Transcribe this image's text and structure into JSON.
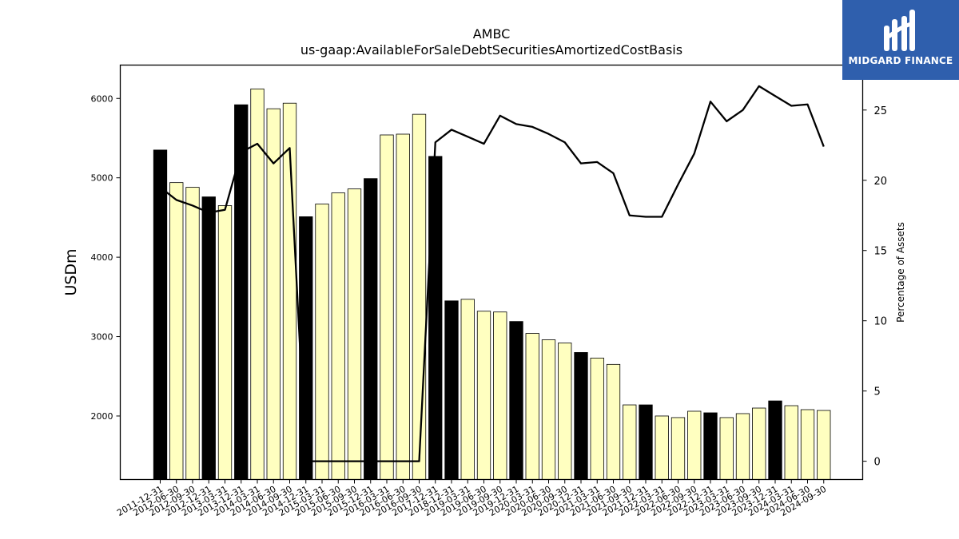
{
  "logo": {
    "text": "MIDGARD FINANCE",
    "background": "#2f5fad"
  },
  "chart_data": {
    "type": "bar",
    "title": "AMBC",
    "subtitle": "us-gaap:AvailableForSaleDebtSecuritiesAmortizedCostBasis",
    "ylabel": "USDm",
    "y2label": "Percentage of Assets",
    "ylim": [
      1200,
      6420
    ],
    "y2lim": [
      -1.3,
      28.2
    ],
    "yticks": [
      2000,
      3000,
      4000,
      5000,
      6000
    ],
    "y2ticks": [
      0,
      5,
      10,
      15,
      20,
      25
    ],
    "grid": false,
    "colors": {
      "annual": "#000000",
      "quarterly": "#ffffc0",
      "edge": "#000000",
      "line": "#000000"
    },
    "categories": [
      "2011-12-31",
      "2012-06-30",
      "2012-09-30",
      "2012-12-31",
      "2013-03-31",
      "2013-12-31",
      "2014-03-31",
      "2014-06-30",
      "2014-09-30",
      "2014-12-31",
      "2015-03-31",
      "2015-06-30",
      "2015-09-30",
      "2015-12-31",
      "2016-03-31",
      "2016-06-30",
      "2016-09-30",
      "2017-12-31",
      "2018-12-31",
      "2019-03-31",
      "2019-06-30",
      "2019-09-30",
      "2019-12-31",
      "2020-03-31",
      "2020-06-30",
      "2020-09-30",
      "2020-12-31",
      "2021-03-31",
      "2021-06-30",
      "2021-09-30",
      "2021-12-31",
      "2022-03-31",
      "2022-06-30",
      "2022-09-30",
      "2022-12-31",
      "2023-03-31",
      "2023-06-30",
      "2023-09-30",
      "2023-12-31",
      "2024-03-31",
      "2024-06-30",
      "2024-09-30"
    ],
    "series": [
      {
        "kind": "bar",
        "values": [
          5350,
          4940,
          4880,
          4760,
          4650,
          5920,
          6120,
          5870,
          5940,
          4510,
          4670,
          4810,
          4860,
          4990,
          5540,
          5550,
          5800,
          5270,
          3450,
          3470,
          3320,
          3310,
          3190,
          3040,
          2960,
          2920,
          2800,
          2730,
          2650,
          2140,
          2140,
          2000,
          1980,
          2060,
          2040,
          1980,
          2030,
          2100,
          2190,
          2130,
          2080,
          2070
        ],
        "annual": [
          true,
          false,
          false,
          true,
          false,
          true,
          false,
          false,
          false,
          true,
          false,
          false,
          false,
          true,
          false,
          false,
          false,
          true,
          true,
          false,
          false,
          false,
          true,
          false,
          false,
          false,
          true,
          false,
          false,
          false,
          true,
          false,
          false,
          false,
          true,
          false,
          false,
          false,
          true,
          false,
          false,
          false
        ]
      },
      {
        "kind": "line",
        "axis": "right",
        "values": [
          19.5,
          18.6,
          18.2,
          17.7,
          17.9,
          22.0,
          22.6,
          21.2,
          22.3,
          0.0,
          0.0,
          0.0,
          0.0,
          0.0,
          0.0,
          0.0,
          0.0,
          22.7,
          23.6,
          23.1,
          22.6,
          24.6,
          24.0,
          23.8,
          23.3,
          22.7,
          21.2,
          21.3,
          20.5,
          17.5,
          17.4,
          17.4,
          19.7,
          21.9,
          25.6,
          24.2,
          25.0,
          26.7,
          26.0,
          25.3,
          25.4,
          22.4
        ]
      }
    ]
  }
}
